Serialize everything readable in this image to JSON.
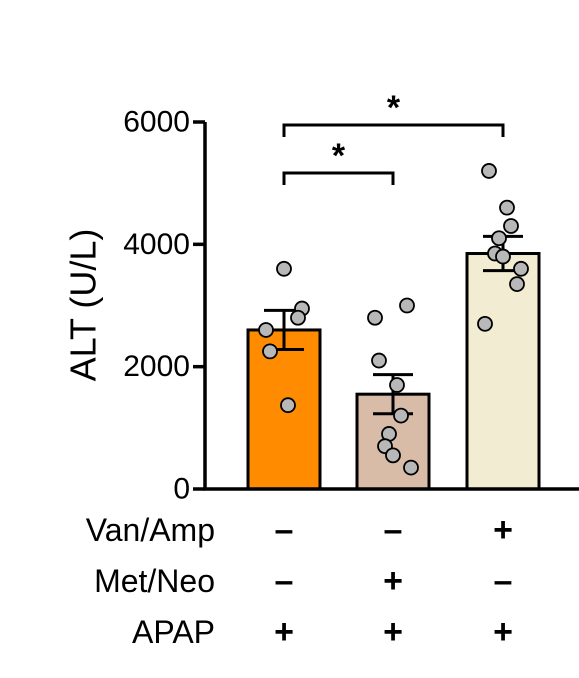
{
  "chart_data": {
    "type": "bar",
    "ylabel": "ALT (U/L)",
    "ylim": [
      0,
      6000
    ],
    "yticks": [
      "0",
      "2000",
      "4000",
      "6000"
    ],
    "ytick_values": [
      0,
      2000,
      4000,
      6000
    ],
    "groups": [
      {
        "mean": 2600,
        "sem": 320,
        "color": "#ff8c00",
        "points": [
          3600,
          2950,
          2800,
          2600,
          2250,
          1370
        ]
      },
      {
        "mean": 1550,
        "sem": 320,
        "color": "#d8bca8",
        "points": [
          3000,
          2800,
          2100,
          1700,
          1200,
          900,
          700,
          550,
          350
        ]
      },
      {
        "mean": 3850,
        "sem": 280,
        "color": "#f2ecd2",
        "points": [
          5200,
          4600,
          4300,
          4100,
          3850,
          3800,
          3600,
          3350,
          2700
        ]
      }
    ],
    "conditions": [
      {
        "label": "Van/Amp",
        "signs": [
          "–",
          "–",
          "+"
        ]
      },
      {
        "label": "Met/Neo",
        "signs": [
          "–",
          "+",
          "–"
        ]
      },
      {
        "label": "APAP",
        "signs": [
          "+",
          "+",
          "+"
        ]
      }
    ],
    "significance": [
      {
        "from": 0,
        "to": 2,
        "label": "*"
      },
      {
        "from": 0,
        "to": 1,
        "label": "*"
      }
    ]
  }
}
